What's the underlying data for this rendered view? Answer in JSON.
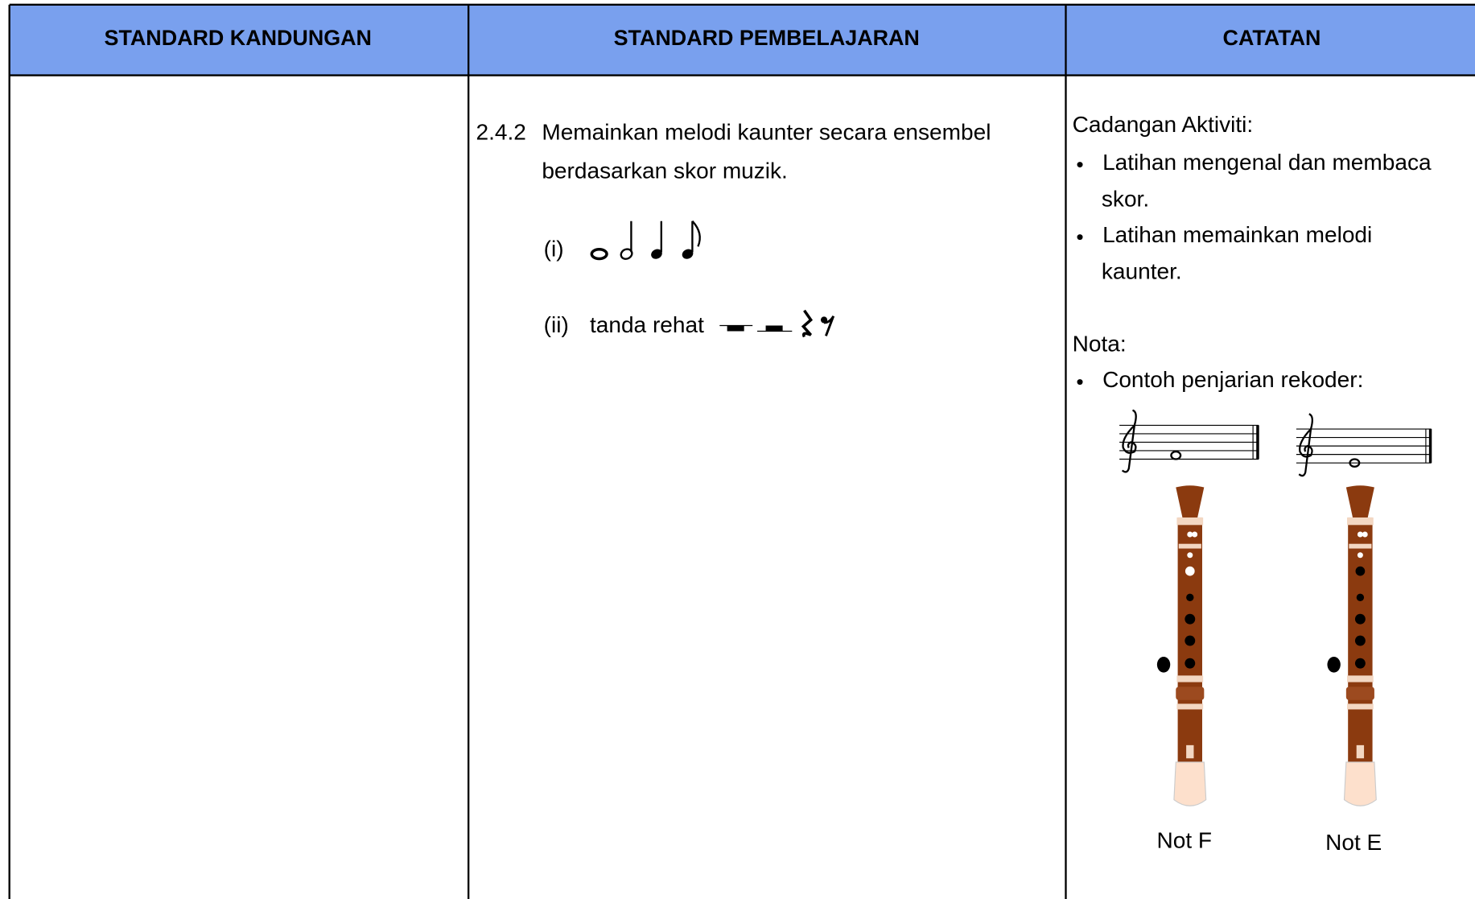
{
  "header": {
    "columns": [
      "STANDARD KANDUNGAN",
      "STANDARD PEMBELAJARAN",
      "CATATAN"
    ]
  },
  "row": {
    "standard_pembelajaran": {
      "code": "2.4.2",
      "lines": [
        "Memainkan melodi kaunter secara ensembel",
        "berdasarkan skor muzik."
      ],
      "items": [
        {
          "marker": "(i)"
        },
        {
          "marker": "(ii)",
          "text": "tanda rehat"
        }
      ]
    },
    "catatan": {
      "heading": "Cadangan Aktiviti:",
      "bullets": [
        [
          "Latihan mengenal dan membaca",
          "skor."
        ],
        [
          "Latihan memainkan melodi",
          "kaunter."
        ]
      ],
      "nota": "Nota:",
      "nota_bullets": [
        "Contoh penjarian rekoder:"
      ],
      "figures": [
        {
          "label": "Not F"
        },
        {
          "label": "Not E"
        }
      ]
    }
  }
}
